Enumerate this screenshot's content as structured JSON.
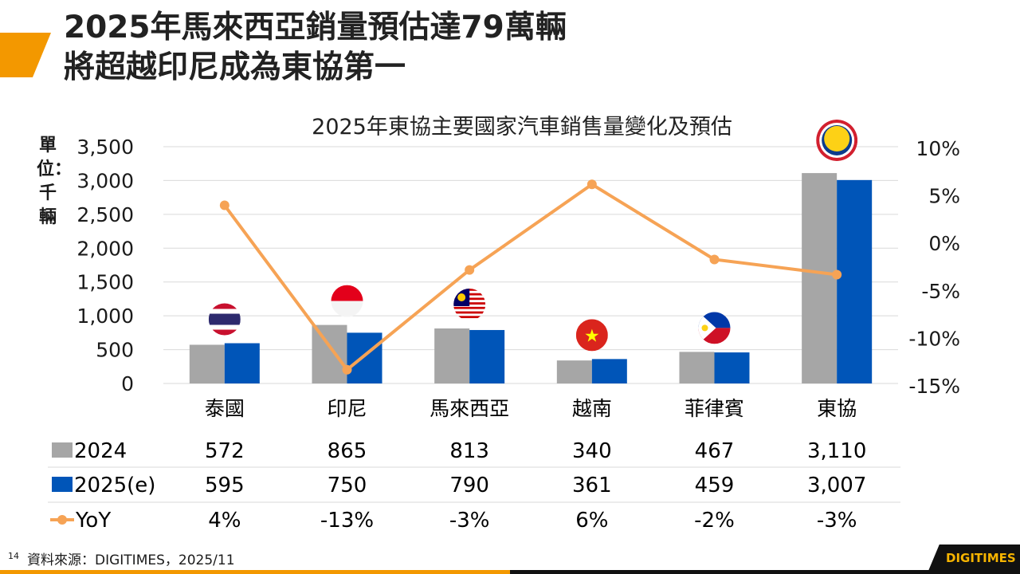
{
  "header": {
    "title_line1": "2025年馬來西亞銷量預估達79萬輛",
    "title_line2": "將超越印尼成為東協第一"
  },
  "footer": {
    "page_number": "14",
    "source": "資料來源：DIGITIMES，2025/11",
    "logo": "DIGITIMES"
  },
  "colors": {
    "accent": "#f39800",
    "series_2024": "#a6a6a6",
    "series_2025": "#0055b8",
    "yoy": "#f6a355"
  },
  "chart_data": {
    "type": "bar+line",
    "title": "2025年東協主要國家汽車銷售量變化及預估",
    "ylabel": "單位：千輛",
    "ylim": [
      0,
      3500
    ],
    "yticks": [
      "3,500",
      "3,000",
      "2,500",
      "2,000",
      "1,500",
      "1,000",
      "500",
      "0"
    ],
    "y2lim": [
      -15,
      10
    ],
    "y2ticks": [
      "10%",
      "5%",
      "0%",
      "-5%",
      "-10%",
      "-15%"
    ],
    "grid": true,
    "categories": [
      "泰國",
      "印尼",
      "馬來西亞",
      "越南",
      "菲律賓",
      "東協"
    ],
    "flag_icons": [
      "thailand-flag",
      "indonesia-flag",
      "malaysia-flag",
      "vietnam-flag",
      "philippines-flag",
      "asean-logo"
    ],
    "series": [
      {
        "name": "2024",
        "type": "bar",
        "values": [
          572,
          865,
          813,
          340,
          467,
          3110
        ],
        "labels": [
          "572",
          "865",
          "813",
          "340",
          "467",
          "3,110"
        ]
      },
      {
        "name": "2025(e)",
        "type": "bar",
        "values": [
          595,
          750,
          790,
          361,
          459,
          3007
        ],
        "labels": [
          "595",
          "750",
          "790",
          "361",
          "459",
          "3,007"
        ]
      },
      {
        "name": "YoY",
        "type": "line",
        "axis": "right",
        "values": [
          4.0,
          -13.3,
          -2.8,
          6.2,
          -1.7,
          -3.3
        ],
        "labels": [
          "4%",
          "-13%",
          "-3%",
          "6%",
          "-2%",
          "-3%"
        ]
      }
    ]
  }
}
